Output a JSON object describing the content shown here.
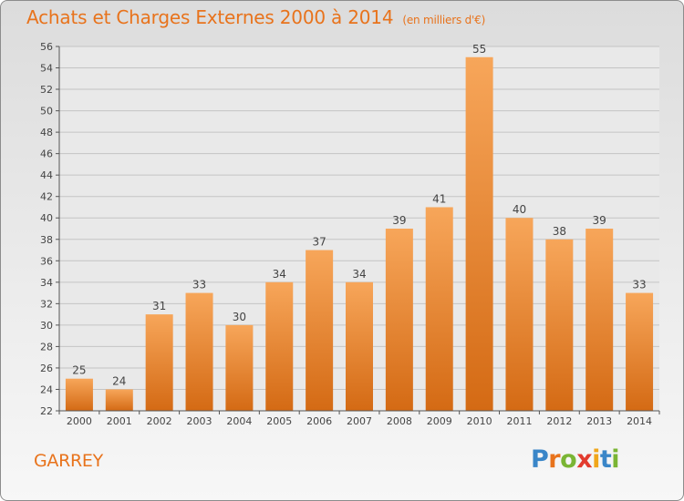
{
  "title": "Achats et Charges Externes 2000 à 2014",
  "subtitle": "(en milliers d'€)",
  "commune": "GARREY",
  "logo": {
    "letters": [
      "P",
      "r",
      "o",
      "x",
      "i",
      "t",
      "i"
    ],
    "colors": [
      "#3a86c8",
      "#e8731c",
      "#7ab534",
      "#e23b2e",
      "#f0a61a",
      "#3a86c8",
      "#7ab534"
    ]
  },
  "colors": {
    "accent": "#e8731c",
    "bar_light": "#f7a65a",
    "bar_dark": "#d46a14"
  },
  "chart_data": {
    "type": "bar",
    "title": "Achats et Charges Externes 2000 à 2014",
    "subtitle": "(en milliers d'€)",
    "categories": [
      "2000",
      "2001",
      "2002",
      "2003",
      "2004",
      "2005",
      "2006",
      "2007",
      "2008",
      "2009",
      "2010",
      "2011",
      "2012",
      "2013",
      "2014"
    ],
    "values": [
      25,
      24,
      31,
      33,
      30,
      34,
      37,
      34,
      39,
      41,
      55,
      40,
      38,
      39,
      33
    ],
    "ylim": [
      22,
      56
    ],
    "yticks": [
      22,
      24,
      26,
      28,
      30,
      32,
      34,
      36,
      38,
      40,
      42,
      44,
      46,
      48,
      50,
      52,
      54,
      56
    ],
    "grid": true,
    "data_labels": true
  }
}
